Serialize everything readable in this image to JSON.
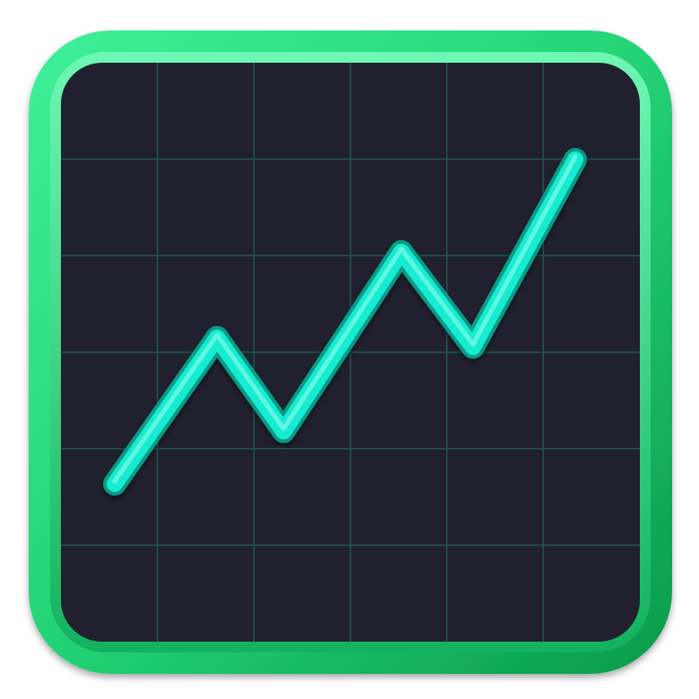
{
  "icon": {
    "name": "stock-chart-icon",
    "colors": {
      "frame_light": "#3ff09a",
      "frame_mid": "#23d375",
      "frame_dark": "#0a9a4c",
      "screen": "#20202e",
      "grid": "#1f5a4c",
      "line": "#17ecd0",
      "line_edge": "#079a86"
    },
    "grid": {
      "columns": 6,
      "rows": 6
    },
    "trend_points": [
      {
        "x": 0,
        "y": 0
      },
      {
        "x": 1,
        "y": 4.6
      },
      {
        "x": 1.65,
        "y": 1.65
      },
      {
        "x": 2.8,
        "y": 7.3
      },
      {
        "x": 3.5,
        "y": 4.3
      },
      {
        "x": 4.5,
        "y": 10.2
      }
    ],
    "trend_range": {
      "x": [
        0,
        4.5
      ],
      "y": [
        0,
        10.2
      ]
    }
  }
}
